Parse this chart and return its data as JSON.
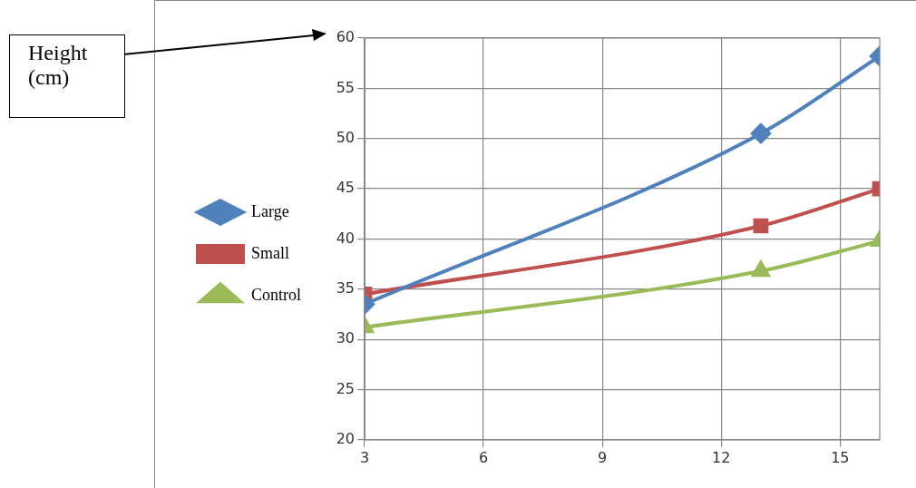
{
  "chart_data": {
    "type": "line",
    "annotations": [
      "Height\n(cm)"
    ],
    "x": [
      3,
      13,
      16
    ],
    "series": [
      {
        "name": "Large",
        "color": "#4f81bd",
        "marker": "diamond",
        "values": [
          33.5,
          50.5,
          58.2
        ]
      },
      {
        "name": "Small",
        "color": "#c0504d",
        "marker": "square",
        "values": [
          34.5,
          41.3,
          45.0
        ]
      },
      {
        "name": "Control",
        "color": "#9bbb59",
        "marker": "triangle",
        "values": [
          31.2,
          36.8,
          39.8
        ]
      }
    ],
    "xlim": [
      3,
      16
    ],
    "xticks": [
      3,
      6,
      9,
      12,
      15
    ],
    "ylim": [
      20,
      60
    ],
    "yticks": [
      20,
      25,
      30,
      35,
      40,
      45,
      50,
      55,
      60
    ],
    "grid": true,
    "legend": "left",
    "line_style": "solid"
  }
}
